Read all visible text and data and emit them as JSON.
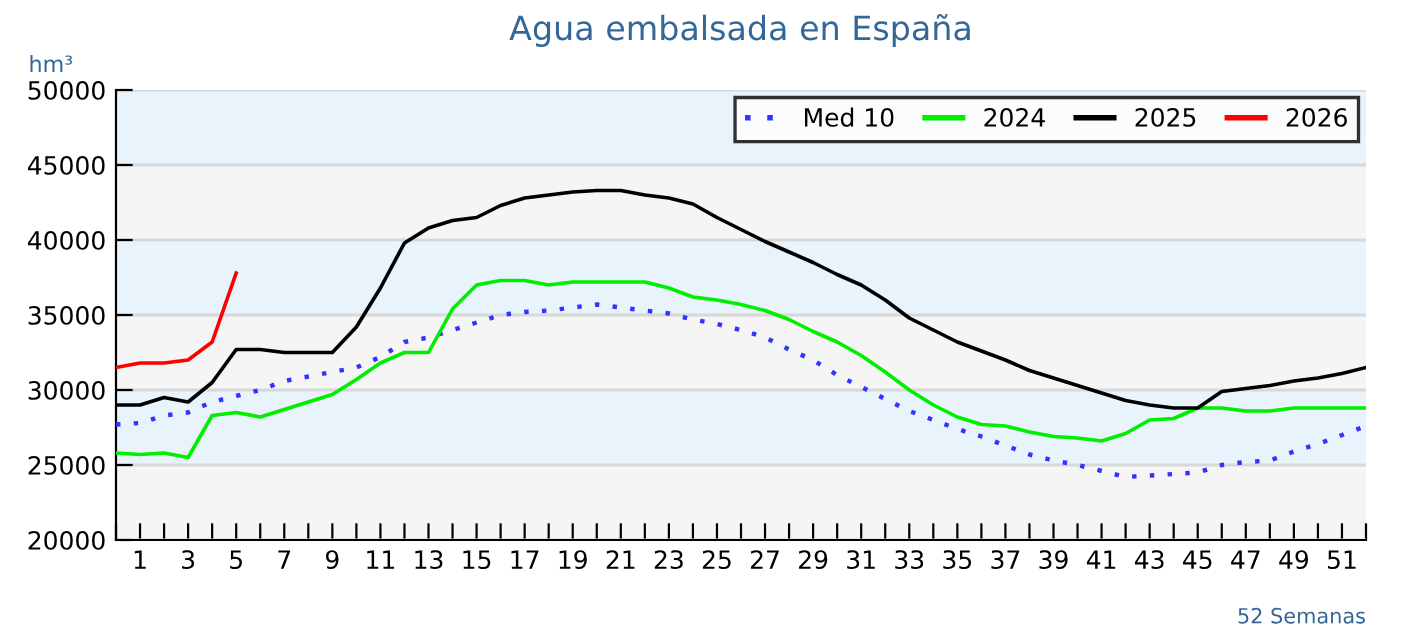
{
  "chart_data": {
    "type": "line",
    "title": "Agua embalsada en España",
    "ylabel": "hm³",
    "xlabel": "52 Semanas",
    "x": [
      0,
      1,
      2,
      3,
      4,
      5,
      6,
      7,
      8,
      9,
      10,
      11,
      12,
      13,
      14,
      15,
      16,
      17,
      18,
      19,
      20,
      21,
      22,
      23,
      24,
      25,
      26,
      27,
      28,
      29,
      30,
      31,
      32,
      33,
      34,
      35,
      36,
      37,
      38,
      39,
      40,
      41,
      42,
      43,
      44,
      45,
      46,
      47,
      48,
      49,
      50,
      51,
      52
    ],
    "series": [
      {
        "name": "Med 10",
        "color": "#3333ff",
        "line_style": "dotted",
        "values": [
          27700,
          27800,
          28300,
          28500,
          29200,
          29600,
          30000,
          30600,
          30900,
          31200,
          31500,
          32200,
          33200,
          33500,
          34000,
          34500,
          35000,
          35200,
          35300,
          35500,
          35700,
          35500,
          35300,
          35100,
          34700,
          34400,
          34000,
          33500,
          32700,
          32000,
          31000,
          30200,
          29400,
          28600,
          28000,
          27400,
          26900,
          26300,
          25700,
          25300,
          25000,
          24600,
          24200,
          24300,
          24400,
          24500,
          25000,
          25200,
          25300,
          25900,
          26400,
          27000,
          27600
        ]
      },
      {
        "name": "2024",
        "color": "#00ee00",
        "line_style": "solid",
        "values": [
          25800,
          25700,
          25800,
          25500,
          28300,
          28500,
          28200,
          28700,
          29200,
          29700,
          30700,
          31800,
          32500,
          32500,
          35400,
          37000,
          37300,
          37300,
          37000,
          37200,
          37200,
          37200,
          37200,
          36800,
          36200,
          36000,
          35700,
          35300,
          34700,
          33900,
          33200,
          32300,
          31200,
          30000,
          29000,
          28200,
          27700,
          27600,
          27200,
          26900,
          26800,
          26600,
          27100,
          28000,
          28100,
          28800,
          28800,
          28600,
          28600,
          28800,
          28800,
          28800,
          28800
        ]
      },
      {
        "name": "2025",
        "color": "#000000",
        "line_style": "solid",
        "values": [
          29000,
          29000,
          29500,
          29200,
          30500,
          32700,
          32700,
          32500,
          32500,
          32500,
          34200,
          36800,
          39800,
          40800,
          41300,
          41500,
          42300,
          42800,
          43000,
          43200,
          43300,
          43300,
          43000,
          42800,
          42400,
          41500,
          40700,
          39900,
          39200,
          38500,
          37700,
          37000,
          36000,
          34800,
          34000,
          33200,
          32600,
          32000,
          31300,
          30800,
          30300,
          29800,
          29300,
          29000,
          28800,
          28800,
          29900,
          30100,
          30300,
          30600,
          30800,
          31100,
          31500
        ]
      },
      {
        "name": "2026",
        "color": "#ff0000",
        "line_style": "solid",
        "values": [
          31500,
          31800,
          31800,
          32000,
          33200,
          37800,
          null,
          null,
          null,
          null,
          null,
          null,
          null,
          null,
          null,
          null,
          null,
          null,
          null,
          null,
          null,
          null,
          null,
          null,
          null,
          null,
          null,
          null,
          null,
          null,
          null,
          null,
          null,
          null,
          null,
          null,
          null,
          null,
          null,
          null,
          null,
          null,
          null,
          null,
          null,
          null,
          null,
          null,
          null,
          null,
          null,
          null,
          null
        ]
      }
    ],
    "xlim": [
      0,
      52
    ],
    "xticks": [
      {
        "value": 0,
        "label": null
      },
      1,
      {
        "value": 2,
        "label": null
      },
      3,
      {
        "value": 4,
        "label": null
      },
      5,
      {
        "value": 6,
        "label": null
      },
      7,
      {
        "value": 8,
        "label": null
      },
      9,
      {
        "value": 10,
        "label": null
      },
      11,
      {
        "value": 12,
        "label": null
      },
      13,
      {
        "value": 14,
        "label": null
      },
      15,
      {
        "value": 16,
        "label": null
      },
      17,
      {
        "value": 18,
        "label": null
      },
      19,
      {
        "value": 20,
        "label": null
      },
      21,
      {
        "value": 22,
        "label": null
      },
      23,
      {
        "value": 24,
        "label": null
      },
      25,
      {
        "value": 26,
        "label": null
      },
      27,
      {
        "value": 28,
        "label": null
      },
      29,
      {
        "value": 30,
        "label": null
      },
      31,
      {
        "value": 32,
        "label": null
      },
      33,
      {
        "value": 34,
        "label": null
      },
      35,
      {
        "value": 36,
        "label": null
      },
      37,
      {
        "value": 38,
        "label": null
      },
      39,
      {
        "value": 40,
        "label": null
      },
      41,
      {
        "value": 42,
        "label": null
      },
      43,
      {
        "value": 44,
        "label": null
      },
      45,
      {
        "value": 46,
        "label": null
      },
      47,
      {
        "value": 48,
        "label": null
      },
      49,
      {
        "value": 50,
        "label": null
      },
      51,
      {
        "value": 52,
        "label": null
      }
    ],
    "ylim": [
      20000,
      50000
    ],
    "yticks": [
      20000,
      25000,
      30000,
      35000,
      40000,
      45000,
      50000
    ],
    "grid": "y",
    "legend": "top right"
  }
}
